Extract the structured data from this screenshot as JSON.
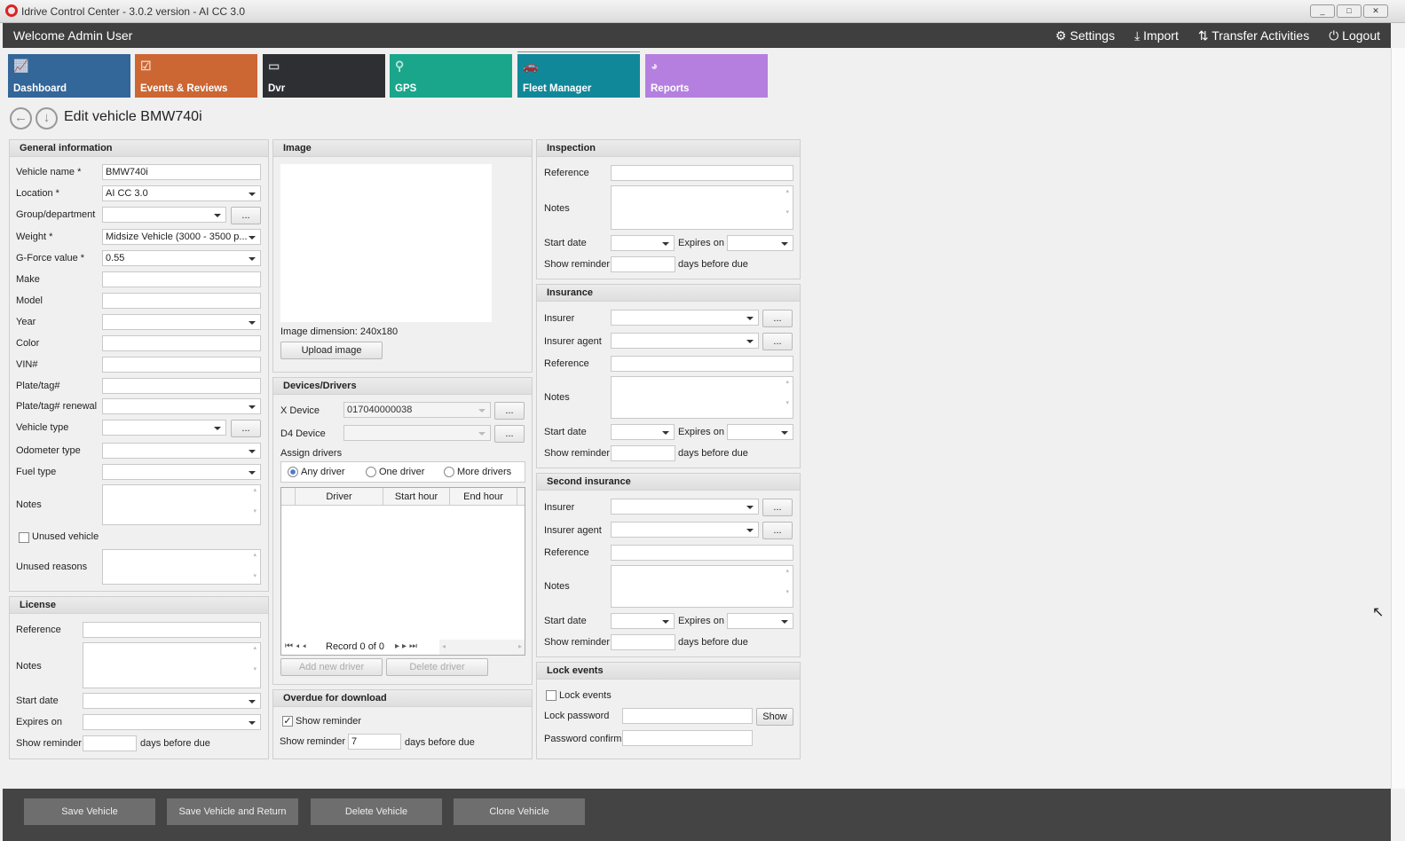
{
  "window": {
    "title": "Idrive Control Center - 3.0.2 version - AI CC 3.0",
    "minimize": "_",
    "maximize": "□",
    "close": "✕"
  },
  "header": {
    "welcome": "Welcome Admin User",
    "settings": "Settings",
    "import": "Import",
    "transfer": "Transfer Activities",
    "logout": "Logout"
  },
  "tiles": [
    {
      "label": "Dashboard",
      "color": "#336699"
    },
    {
      "label": "Events & Reviews",
      "color": "#cc6633"
    },
    {
      "label": "Dvr",
      "color": "#2d2f33"
    },
    {
      "label": "GPS",
      "color": "#1aa68a"
    },
    {
      "label": "Fleet Manager",
      "color": "#118899"
    },
    {
      "label": "Reports",
      "color": "#b57fe0"
    }
  ],
  "page": {
    "title": "Edit vehicle BMW740i"
  },
  "general": {
    "title": "General information",
    "vehicle_name_label": "Vehicle name *",
    "vehicle_name": "BMW740i",
    "location_label": "Location *",
    "location": "AI CC 3.0",
    "group_label": "Group/department",
    "group": "",
    "weight_label": "Weight *",
    "weight": "Midsize Vehicle (3000 - 3500 p...",
    "gforce_label": "G-Force value *",
    "gforce": "0.55",
    "make_label": "Make",
    "model_label": "Model",
    "year_label": "Year",
    "color_label": "Color",
    "vin_label": "VIN#",
    "plate_label": "Plate/tag#",
    "plate_renewal_label": "Plate/tag# renewal",
    "vehicle_type_label": "Vehicle type",
    "odometer_label": "Odometer type",
    "fuel_label": "Fuel type",
    "notes_label": "Notes",
    "unused_label": "Unused vehicle",
    "unused_checked": false,
    "unused_reasons_label": "Unused reasons",
    "more": "..."
  },
  "license": {
    "title": "License",
    "reference": "Reference",
    "notes": "Notes",
    "start": "Start date",
    "expires": "Expires on",
    "reminder": "Show reminder",
    "days": "days before due"
  },
  "image": {
    "title": "Image",
    "dimension_label": "Image dimension:",
    "dimension": "240x180",
    "upload": "Upload image"
  },
  "devices": {
    "title": "Devices/Drivers",
    "x_device_label": "X Device",
    "x_device": "017040000038",
    "d4_device_label": "D4 Device",
    "d4_device": "",
    "assign": "Assign drivers",
    "radio": [
      "Any driver",
      "One driver",
      "More drivers"
    ],
    "selected": "Any driver",
    "columns": [
      "Driver",
      "Start hour",
      "End hour"
    ],
    "record": "Record 0 of 0",
    "add": "Add new driver",
    "delete": "Delete driver"
  },
  "overdue": {
    "title": "Overdue for download",
    "show_reminder_cb": "Show reminder",
    "checked": true,
    "reminder_label": "Show reminder",
    "reminder": "7",
    "days": "days before due"
  },
  "inspection": {
    "title": "Inspection",
    "reference": "Reference",
    "notes": "Notes",
    "start": "Start date",
    "expires": "Expires on",
    "reminder": "Show reminder",
    "days": "days before due"
  },
  "insurance": {
    "title": "Insurance",
    "insurer": "Insurer",
    "agent": "Insurer agent",
    "reference": "Reference",
    "notes": "Notes",
    "start": "Start date",
    "expires": "Expires on",
    "reminder": "Show reminder",
    "days": "days before due"
  },
  "second_insurance": {
    "title": "Second insurance",
    "insurer": "Insurer",
    "agent": "Insurer agent",
    "reference": "Reference",
    "notes": "Notes",
    "start": "Start date",
    "expires": "Expires on",
    "reminder": "Show reminder",
    "days": "days before due"
  },
  "lock": {
    "title": "Lock events",
    "lock_cb": "Lock events",
    "password": "Lock password",
    "show": "Show",
    "confirm": "Password confirm"
  },
  "footer": {
    "save": "Save Vehicle",
    "save_return": "Save Vehicle and Return",
    "delete": "Delete Vehicle",
    "clone": "Clone Vehicle"
  }
}
